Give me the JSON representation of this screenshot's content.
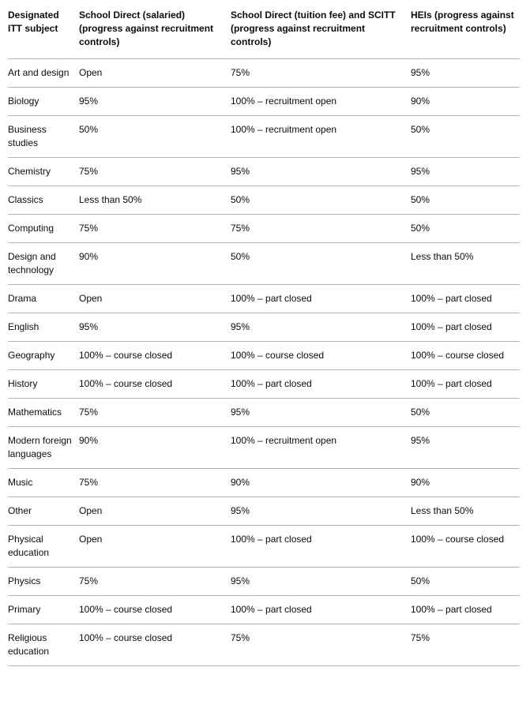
{
  "table": {
    "headers": [
      "Designated ITT subject",
      "School Direct (salaried) (progress against recruitment controls)",
      "School Direct (tuition fee) and SCITT (progress against recruitment controls)",
      "HEIs (progress against recruitment controls)"
    ],
    "rows": [
      [
        "Art and design",
        "Open",
        "75%",
        "95%"
      ],
      [
        "Biology",
        "95%",
        "100% – recruitment open",
        "90%"
      ],
      [
        "Business studies",
        "50%",
        "100% – recruitment open",
        "50%"
      ],
      [
        "Chemistry",
        "75%",
        "95%",
        "95%"
      ],
      [
        "Classics",
        "Less than 50%",
        "50%",
        "50%"
      ],
      [
        "Computing",
        "75%",
        "75%",
        "50%"
      ],
      [
        "Design and technology",
        "90%",
        "50%",
        "Less than 50%"
      ],
      [
        "Drama",
        "Open",
        "100% – part closed",
        "100% – part closed"
      ],
      [
        "English",
        "95%",
        "95%",
        "100% – part closed"
      ],
      [
        "Geography",
        "100% – course closed",
        "100% – course closed",
        "100% – course closed"
      ],
      [
        "History",
        "100% – course closed",
        "100% – part closed",
        "100% – part closed"
      ],
      [
        "Mathematics",
        "75%",
        "95%",
        "50%"
      ],
      [
        "Modern foreign languages",
        "90%",
        "100% – recruitment open",
        "95%"
      ],
      [
        "Music",
        "75%",
        "90%",
        "90%"
      ],
      [
        "Other",
        "Open",
        "95%",
        "Less than 50%"
      ],
      [
        "Physical education",
        "Open",
        "100% – part closed",
        "100% – course closed"
      ],
      [
        "Physics",
        "75%",
        "95%",
        "50%"
      ],
      [
        "Primary",
        "100% – course closed",
        "100% – part closed",
        "100% – part closed"
      ],
      [
        "Religious education",
        "100% – course closed",
        "75%",
        "75%"
      ]
    ]
  }
}
